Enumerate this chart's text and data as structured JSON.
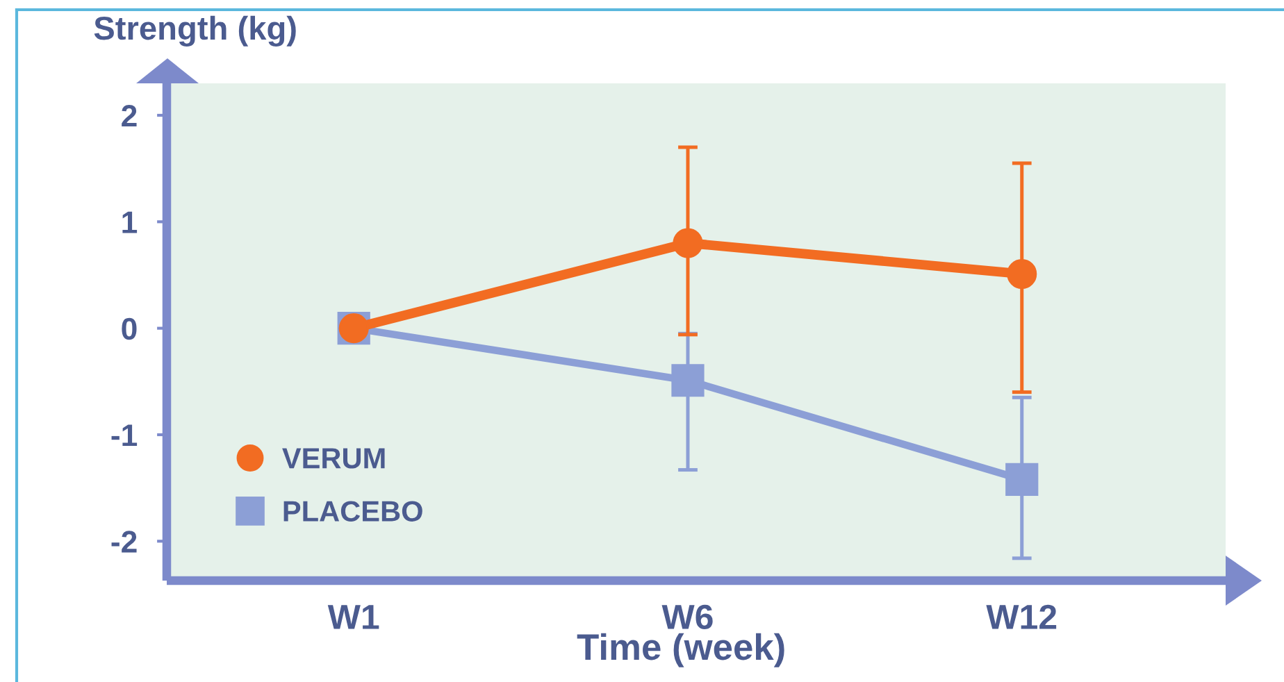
{
  "chart_data": {
    "type": "line",
    "xlabel": "Time (week)",
    "ylabel": "Strength (kg)",
    "categories": [
      "W1",
      "W6",
      "W12"
    ],
    "series": [
      {
        "name": "VERUM",
        "color": "#f26c22",
        "marker": "circle",
        "values": [
          0,
          0.8,
          0.51
        ],
        "errors": [
          null,
          [
            -0.06,
            1.7
          ],
          [
            -0.6,
            1.55
          ]
        ]
      },
      {
        "name": "PLACEBO",
        "color": "#8c9fd6",
        "marker": "square",
        "values": [
          0,
          -0.49,
          -1.42
        ],
        "errors": [
          null,
          [
            -1.33,
            -0.05
          ],
          [
            -2.16,
            -0.65
          ]
        ]
      }
    ],
    "ylim": [
      -2.37,
      2.3
    ],
    "yticks": [
      -2,
      -1,
      0,
      1,
      2
    ],
    "legend": "bottom left"
  }
}
